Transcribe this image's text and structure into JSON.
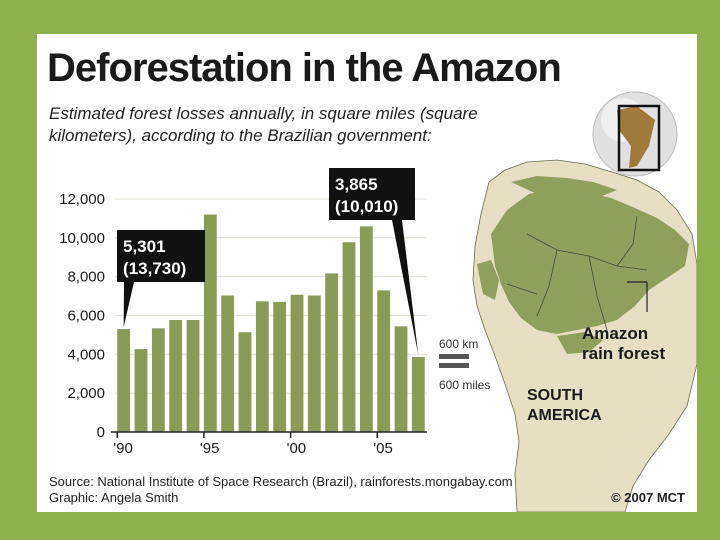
{
  "chart_data": {
    "type": "bar",
    "title": "Deforestation in the Amazon",
    "subtitle_line1": "Estimated forest losses annually, in square miles (square",
    "subtitle_line2": "kilometers), according to the Brazilian government:",
    "x": [
      1990,
      1991,
      1992,
      1993,
      1994,
      1995,
      1996,
      1997,
      1998,
      1999,
      2000,
      2001,
      2002,
      2003,
      2004,
      2005,
      2006,
      2007
    ],
    "x_tick_labels": [
      "'90",
      "'95",
      "'00",
      "'05"
    ],
    "x_tick_years": [
      1990,
      1995,
      2000,
      2005
    ],
    "values": [
      5301,
      4270,
      5340,
      5770,
      5770,
      11200,
      7030,
      5140,
      6730,
      6700,
      7070,
      7030,
      8170,
      9770,
      10590,
      7290,
      5440,
      3865
    ],
    "ylim": [
      0,
      12000
    ],
    "yticks": [
      "0",
      "2,000",
      "4,000",
      "6,000",
      "8,000",
      "10,000",
      "12,000"
    ],
    "ytick_values": [
      0,
      2000,
      4000,
      6000,
      8000,
      10000,
      12000
    ],
    "bar_color": "#8a9b56",
    "annotations": [
      {
        "year": 1990,
        "line1": "5,301",
        "line2": "(13,730)"
      },
      {
        "year": 2007,
        "line1": "3,865",
        "line2": "(10,010)"
      }
    ]
  },
  "map": {
    "rainforest_label_line1": "Amazon",
    "rainforest_label_line2": "rain forest",
    "continent_label_line1": "SOUTH",
    "continent_label_line2": "AMERICA",
    "scale_km": "600 km",
    "scale_miles": "600 miles",
    "land_color": "#e6dfc4",
    "forest_color": "#8fa05c",
    "sea_color": "#ffffff"
  },
  "footer": {
    "source": "Source: National Institute of Space Research (Brazil), rainforests.mongabay.com",
    "graphic": "Graphic: Angela Smith",
    "copyright": "© 2007 MCT"
  }
}
